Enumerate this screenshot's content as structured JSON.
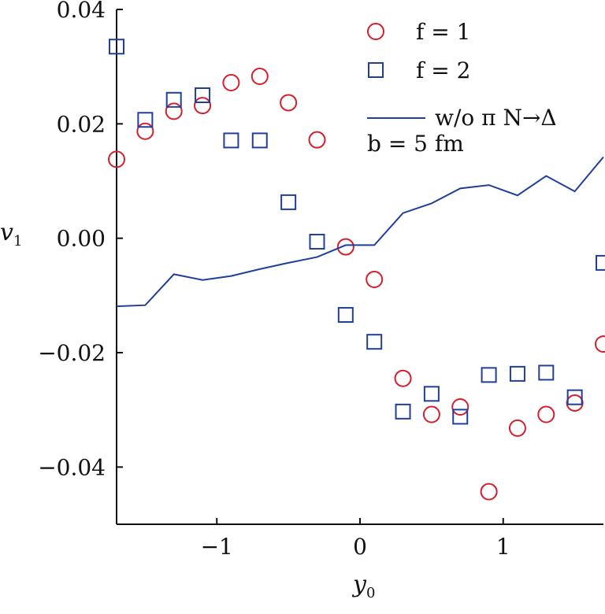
{
  "chart_data": {
    "type": "scatter",
    "xlabel": "y",
    "xlabel_sub": "0",
    "ylabel": "v",
    "ylabel_sub": "1",
    "xlim": [
      -1.7,
      1.7
    ],
    "ylim": [
      -0.05,
      0.04
    ],
    "xticks": [
      -1,
      0,
      1
    ],
    "xtick_labels": [
      "−1",
      "0",
      "1"
    ],
    "yticks": [
      0.04,
      0.02,
      0.0,
      -0.02,
      -0.04
    ],
    "ytick_labels": [
      "0.04",
      "0.02",
      "0.00",
      "−0.02",
      "−0.04"
    ],
    "grid": false,
    "legend_position": "top-right",
    "series": [
      {
        "name": "f = 1",
        "marker": "circle",
        "color": "#d4202a",
        "x": [
          -1.7,
          -1.5,
          -1.3,
          -1.1,
          -0.9,
          -0.7,
          -0.5,
          -0.3,
          -0.1,
          0.1,
          0.3,
          0.5,
          0.7,
          0.9,
          1.1,
          1.3,
          1.5,
          1.7
        ],
        "y": [
          0.0138,
          0.0187,
          0.0222,
          0.0232,
          0.0272,
          0.0283,
          0.0237,
          0.0172,
          -0.0015,
          -0.0072,
          -0.0245,
          -0.0308,
          -0.0295,
          -0.0443,
          -0.0332,
          -0.0308,
          -0.0288,
          -0.0185
        ]
      },
      {
        "name": "f = 2",
        "marker": "square",
        "color": "#1f3f9a",
        "x": [
          -1.7,
          -1.5,
          -1.3,
          -1.1,
          -0.9,
          -0.7,
          -0.5,
          -0.3,
          -0.1,
          0.1,
          0.3,
          0.5,
          0.7,
          0.9,
          1.1,
          1.3,
          1.5,
          1.7
        ],
        "y": [
          0.0335,
          0.0207,
          0.0242,
          0.025,
          0.0171,
          0.0171,
          0.0063,
          -0.0006,
          -0.0134,
          -0.0181,
          -0.0303,
          -0.0272,
          -0.0312,
          -0.0239,
          -0.0237,
          -0.0235,
          -0.0278,
          -0.0043
        ]
      },
      {
        "name": "w/o π N→Δ",
        "marker": "line",
        "color": "#1f3f9a",
        "x": [
          -1.7,
          -1.5,
          -1.3,
          -1.1,
          -0.9,
          -0.7,
          -0.5,
          -0.3,
          -0.1,
          0.1,
          0.3,
          0.5,
          0.7,
          0.9,
          1.1,
          1.3,
          1.5,
          1.7
        ],
        "y": [
          -0.0119,
          -0.0117,
          -0.0063,
          -0.0073,
          -0.0066,
          -0.0054,
          -0.0043,
          -0.0033,
          -0.0012,
          -0.0012,
          0.0044,
          0.0061,
          0.0087,
          0.0093,
          0.0075,
          0.0109,
          0.0082,
          0.0142
        ]
      }
    ],
    "legend": [
      {
        "symbol": "circle",
        "label": "f = 1"
      },
      {
        "symbol": "square",
        "label": "f = 2"
      },
      {
        "symbol": "line",
        "label": "w/o π N→Δ"
      }
    ],
    "annotation": "b = 5 fm"
  }
}
